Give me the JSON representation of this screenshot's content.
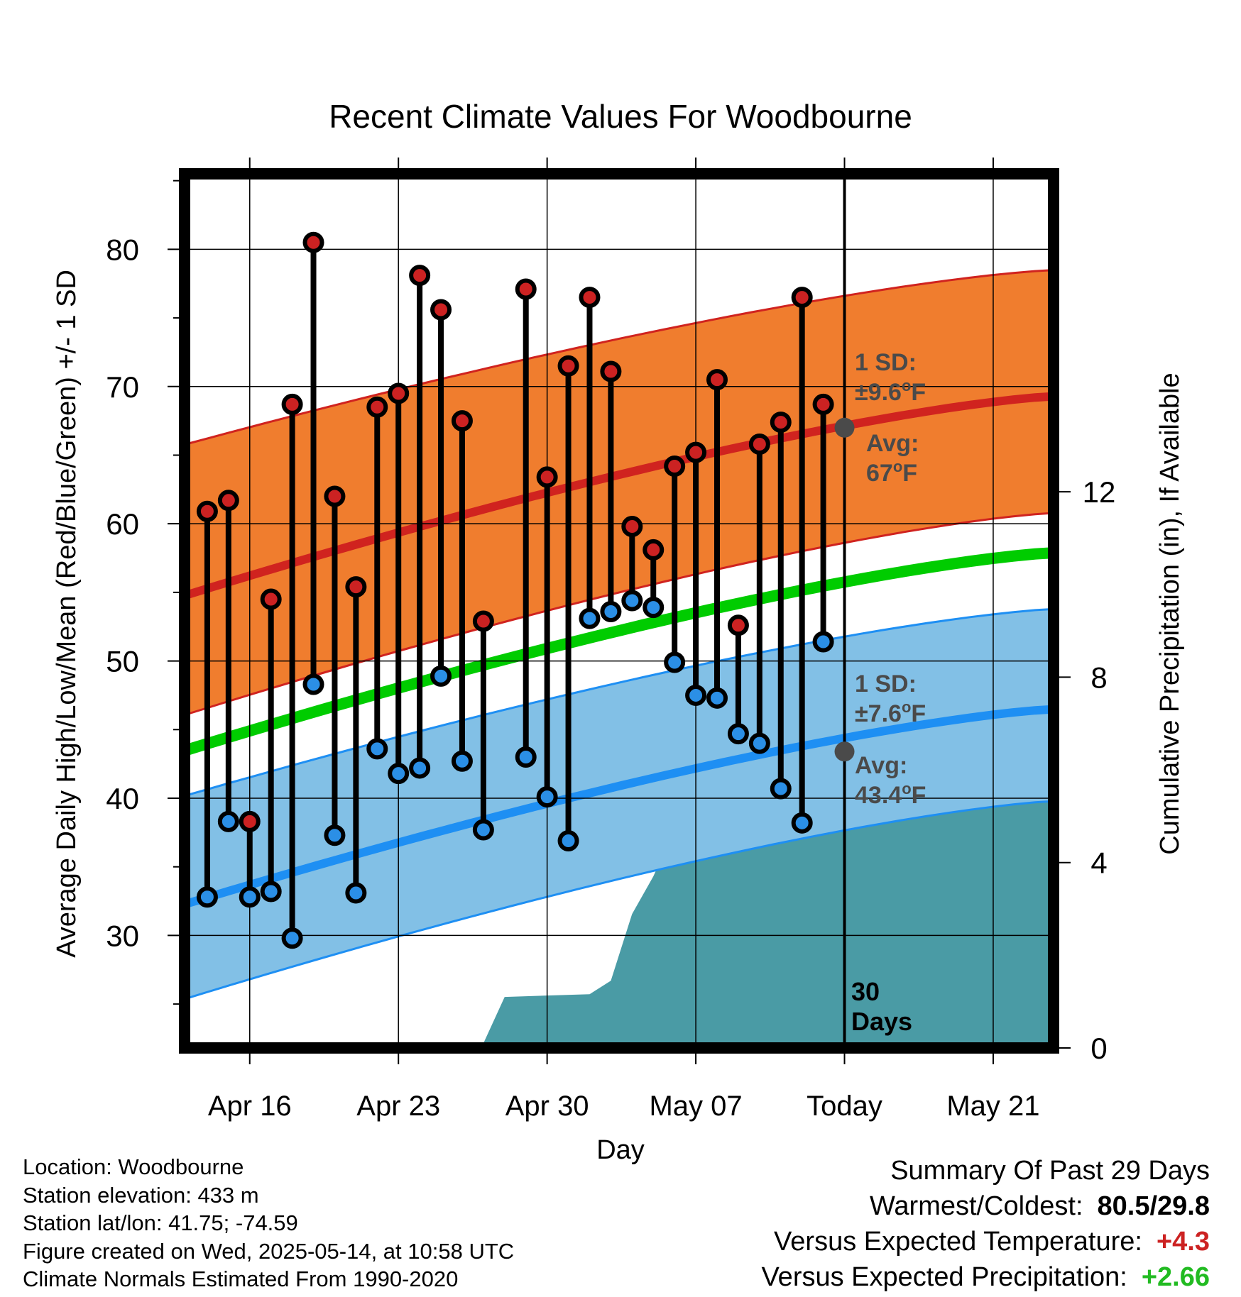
{
  "chart_data": {
    "type": "line",
    "title": "Recent Climate Values For Woodbourne",
    "xlabel": "Day",
    "ylabel": "Average Daily High/Low/Mean (Red/Blue/Green) +/- 1 SD",
    "y2label": "Cumulative Precipitation (in), If Available",
    "ylim": [
      21.8,
      85.5
    ],
    "y2lim": [
      0,
      18.86
    ],
    "yticks": [
      "30",
      "40",
      "50",
      "60",
      "70",
      "80"
    ],
    "y2ticks": [
      "0",
      "4",
      "8",
      "12"
    ],
    "xlim": [
      "2025-04-13",
      "2025-05-24"
    ],
    "xticks": [
      {
        "date": "2025-04-16",
        "label": "Apr 16"
      },
      {
        "date": "2025-04-23",
        "label": "Apr 23"
      },
      {
        "date": "2025-04-30",
        "label": "Apr 30"
      },
      {
        "date": "2025-05-07",
        "label": "May 07"
      },
      {
        "date": "2025-05-14",
        "label": "Today"
      },
      {
        "date": "2025-05-21",
        "label": "May 21"
      }
    ],
    "grid": true,
    "daily_observations": {
      "dates": [
        "2025-04-14",
        "2025-04-15",
        "2025-04-16",
        "2025-04-17",
        "2025-04-18",
        "2025-04-19",
        "2025-04-20",
        "2025-04-21",
        "2025-04-22",
        "2025-04-23",
        "2025-04-24",
        "2025-04-25",
        "2025-04-26",
        "2025-04-27",
        "2025-04-29",
        "2025-04-30",
        "2025-05-01",
        "2025-05-02",
        "2025-05-03",
        "2025-05-04",
        "2025-05-05",
        "2025-05-06",
        "2025-05-07",
        "2025-05-08",
        "2025-05-09",
        "2025-05-10",
        "2025-05-11",
        "2025-05-12",
        "2025-05-13"
      ],
      "high": [
        60.9,
        61.7,
        38.3,
        54.5,
        68.7,
        80.5,
        62.0,
        55.4,
        68.5,
        69.5,
        78.1,
        75.6,
        67.5,
        52.9,
        77.1,
        63.4,
        71.5,
        76.5,
        71.1,
        59.8,
        58.1,
        64.2,
        65.2,
        70.5,
        52.6,
        65.8,
        67.4,
        76.5,
        68.7
      ],
      "low": [
        32.8,
        38.3,
        32.8,
        33.2,
        29.8,
        48.3,
        37.3,
        33.1,
        43.6,
        41.8,
        42.2,
        48.9,
        42.7,
        37.7,
        43.0,
        40.1,
        36.9,
        53.1,
        53.6,
        54.4,
        53.9,
        49.9,
        47.5,
        47.3,
        44.7,
        44.0,
        40.7,
        38.2,
        51.4
      ]
    },
    "normals": {
      "dates": [
        "2025-04-13",
        "2025-05-24"
      ],
      "avg_high": [
        54.8,
        69.3
      ],
      "high_plus_1sd": [
        65.8,
        78.5
      ],
      "high_minus_1sd": [
        46.1,
        60.8
      ],
      "avg_low": [
        32.3,
        46.5
      ],
      "low_plus_1sd": [
        40.2,
        53.8
      ],
      "low_minus_1sd": [
        25.4,
        39.8
      ],
      "avg_mean": [
        43.5,
        57.9
      ]
    },
    "cumulative_precipitation": {
      "dates": [
        "2025-04-13",
        "2025-04-27",
        "2025-04-28",
        "2025-05-02",
        "2025-05-03",
        "2025-05-04",
        "2025-05-05",
        "2025-05-06",
        "2025-05-07",
        "2025-05-08",
        "2025-05-09",
        "2025-05-10",
        "2025-05-14",
        "2025-05-24"
      ],
      "values": [
        0,
        0.1,
        1.1,
        1.16,
        1.45,
        2.89,
        3.7,
        4.72,
        4.72,
        4.91,
        6.84,
        6.84,
        6.88,
        6.88
      ]
    },
    "annotations": {
      "high_sd": "1 SD:",
      "high_sd_value": "±9.6",
      "high_avg_label": "Avg:",
      "high_avg_value": "67",
      "low_sd": "1 SD:",
      "low_sd_value": "±7.6",
      "low_avg_label": "Avg:",
      "low_avg_value": "43.4",
      "unit": "oF",
      "days_count": "30",
      "days_label": "Days",
      "today_date": "2025-05-14",
      "today_high_avg": 67.0,
      "today_low_avg": 43.4
    },
    "colors": {
      "high_band": "#f07d2e",
      "high_line": "#d0231f",
      "low_band": "#82c0e6",
      "low_line": "#1e8ff3",
      "mean_line": "#00cc00",
      "precip": "#4a9ba5",
      "high_marker": "#cc2222",
      "low_marker": "#2b8fe6",
      "annotation": "#4a4a4a"
    }
  },
  "footer": {
    "location": "Location: Woodbourne",
    "elevation": "Station elevation: 433 m",
    "latlon": "Station lat/lon: 41.75; -74.59",
    "created": "Figure created on Wed, 2025-05-14, at 10:58 UTC",
    "normals": "Climate Normals Estimated From 1990-2020"
  },
  "summary": {
    "title": "Summary Of Past 29 Days",
    "warm_cold_label": "Warmest/Coldest:",
    "warm_cold_value": "80.5/29.8",
    "temp_label": "Versus Expected Temperature:",
    "temp_value": "+4.3",
    "temp_color": "#cc2222",
    "precip_label": "Versus Expected Precipitation:",
    "precip_value": "+2.66",
    "precip_color": "#22bb22"
  }
}
